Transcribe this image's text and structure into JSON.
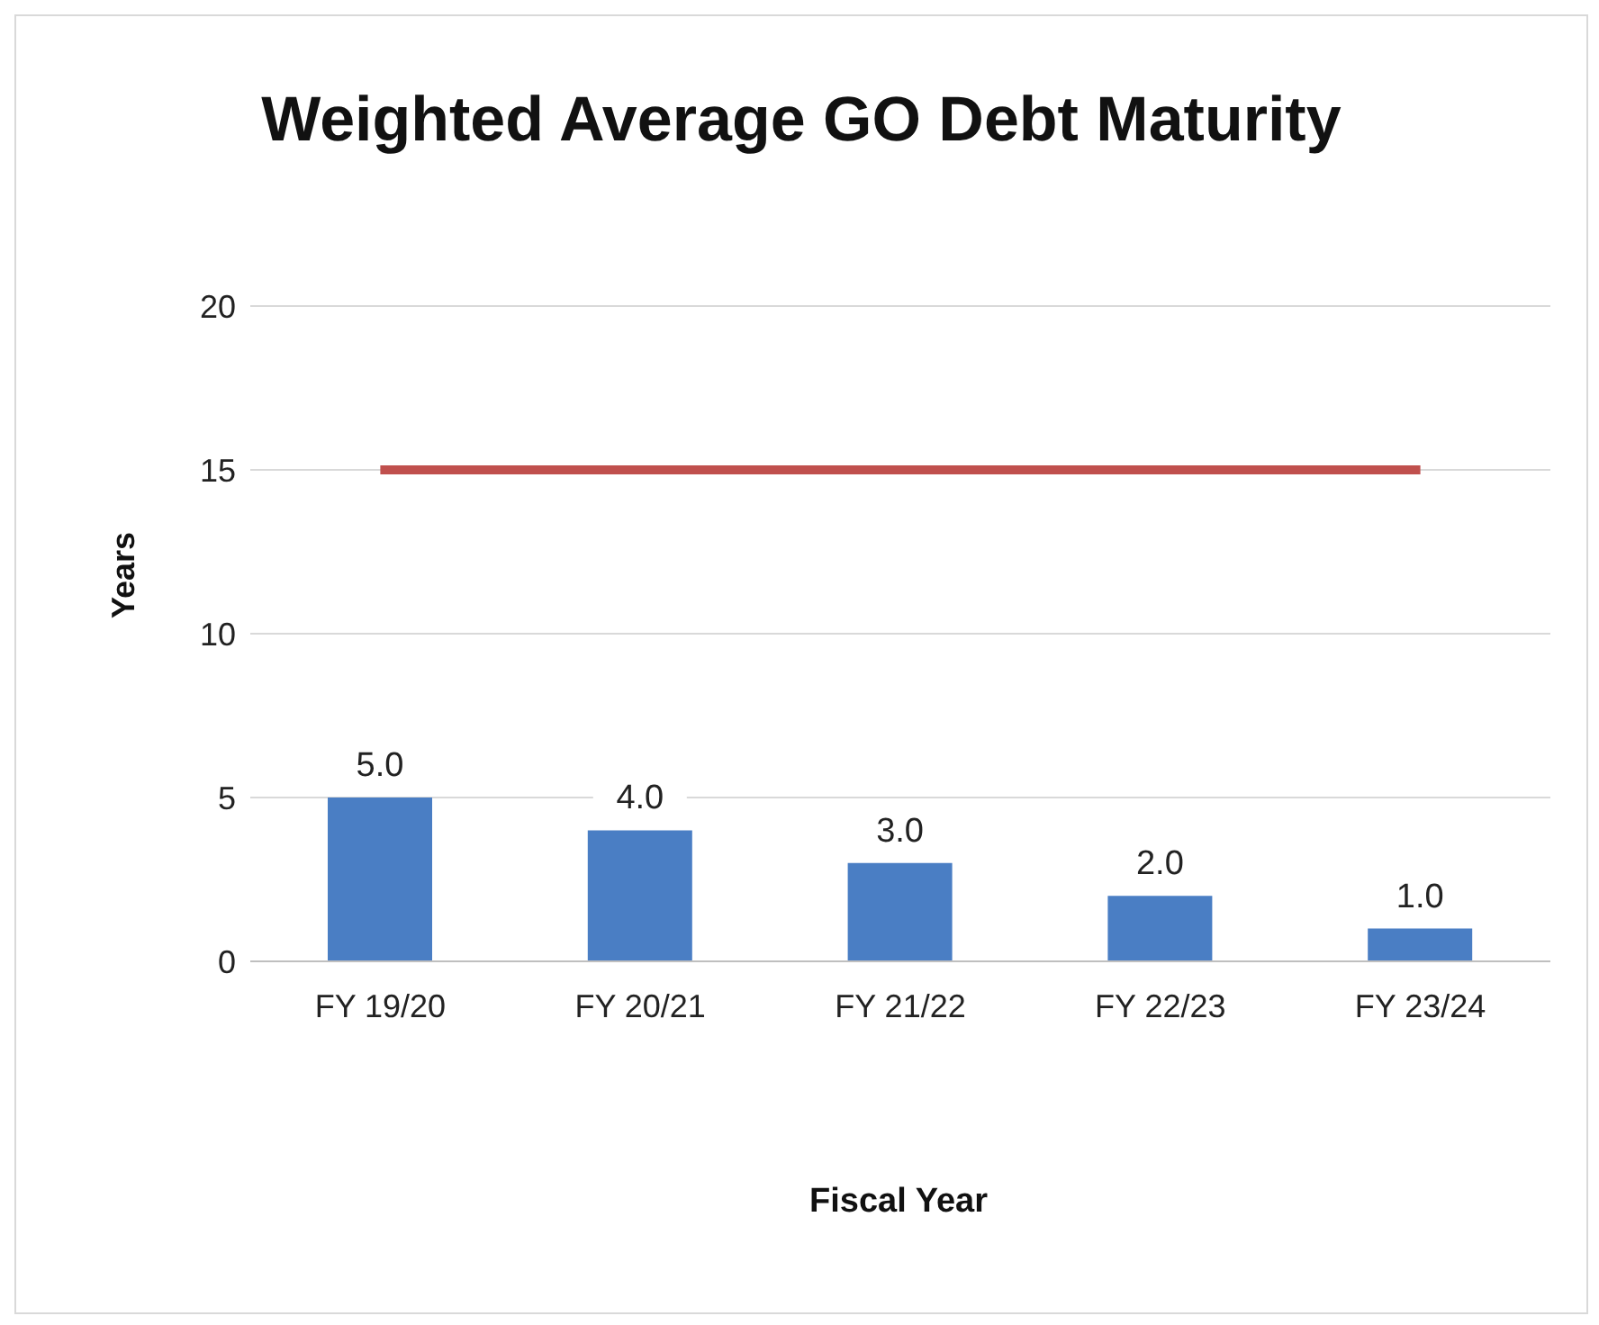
{
  "chart_data": {
    "type": "bar",
    "title": "Weighted Average GO Debt Maturity",
    "xlabel": "Fiscal Year",
    "ylabel": "Years",
    "categories": [
      "FY 19/20",
      "FY 20/21",
      "FY 21/22",
      "FY 22/23",
      "FY 23/24"
    ],
    "series": [
      {
        "color": "#4a7ec4",
        "values": [
          5.0,
          4.0,
          3.0,
          2.0,
          1.0
        ],
        "value_labels": [
          "5.0",
          "4.0",
          "3.0",
          "2.0",
          "1.0"
        ]
      },
      {
        "type": "line",
        "color": "#c0504d",
        "values": [
          15,
          15,
          15,
          15,
          15
        ]
      }
    ],
    "ylim": [
      0,
      20
    ],
    "yticks": [
      0,
      5,
      10,
      15,
      20
    ],
    "grid": "y"
  }
}
